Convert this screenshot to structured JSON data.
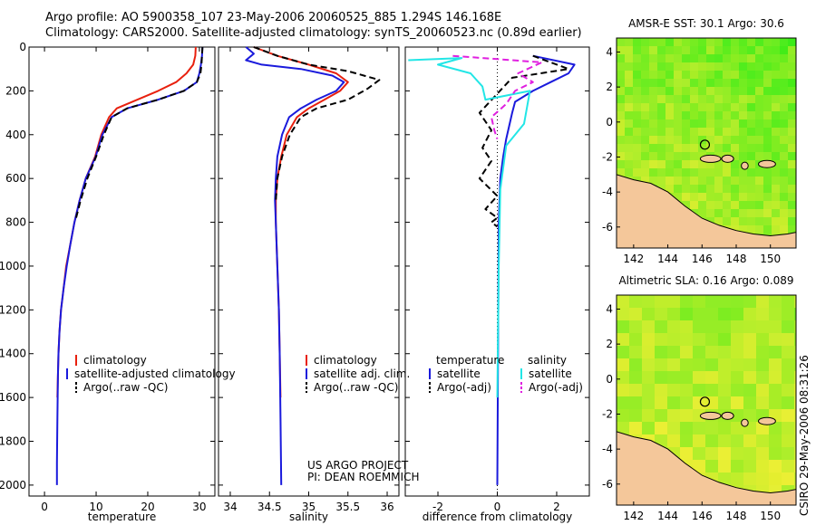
{
  "header": {
    "line1": "Argo profile: AO 5900358_107 23-May-2006 20060525_885 1.294S 146.168E",
    "line2": "Climatology: CARS2000. Satellite-adjusted climatology: synTS_20060523.nc (0.89d earlier)"
  },
  "footer_stamp": "CSIRO 29-May-2006 08:31:26",
  "colors": {
    "red": "#e8200e",
    "blue": "#1a1adc",
    "black": "#000000",
    "cyan": "#22e6e6",
    "magenta": "#e020e0",
    "land": "#f4c79a"
  },
  "chart_data": [
    {
      "type": "line",
      "title": "",
      "xlabel": "temperature",
      "ylabel": "",
      "xlim": [
        -3,
        33
      ],
      "ylim": [
        2050,
        0
      ],
      "xticks": [
        0,
        10,
        20,
        30
      ],
      "yticks": [
        0,
        200,
        400,
        600,
        800,
        1000,
        1200,
        1400,
        1600,
        1800,
        2000
      ],
      "legend": {
        "location": "lower-right",
        "entries": [
          "climatology",
          "satellite-adjusted climatology",
          "Argo(..raw -QC)"
        ]
      },
      "series": [
        {
          "name": "climatology",
          "color": "red",
          "style": "solid",
          "x": [
            29.3,
            29.2,
            28.8,
            27.5,
            25.5,
            22,
            18,
            14,
            12.5,
            11,
            9.8,
            8,
            6.8,
            5.8,
            5,
            4.2,
            3.7,
            3.2,
            2.9,
            2.7,
            2.6,
            2.5
          ],
          "y": [
            0,
            40,
            80,
            120,
            160,
            200,
            240,
            280,
            320,
            400,
            500,
            600,
            700,
            800,
            900,
            1000,
            1100,
            1200,
            1300,
            1400,
            1500,
            1600
          ]
        },
        {
          "name": "satellite-adjusted climatology",
          "color": "blue",
          "style": "solid",
          "x": [
            30.6,
            30.5,
            30.3,
            30,
            29.5,
            27,
            22,
            16,
            13,
            11.2,
            9.9,
            8,
            6.8,
            5.8,
            5,
            4.3,
            3.7,
            3.2,
            2.9,
            2.7,
            2.6,
            2.5,
            2.4,
            2.4
          ],
          "y": [
            0,
            40,
            80,
            120,
            160,
            200,
            240,
            280,
            320,
            400,
            500,
            600,
            700,
            800,
            900,
            1000,
            1100,
            1200,
            1300,
            1400,
            1500,
            1700,
            1900,
            2000
          ]
        },
        {
          "name": "Argo(..raw -QC)",
          "color": "black",
          "style": "dashed",
          "x": [
            30.6,
            30.5,
            30.4,
            30.2,
            29.5,
            27,
            22,
            16,
            13,
            11.5,
            10,
            8.3,
            7,
            6
          ],
          "y": [
            0,
            40,
            80,
            120,
            160,
            200,
            240,
            280,
            320,
            400,
            500,
            600,
            700,
            790
          ]
        }
      ]
    },
    {
      "type": "line",
      "title": "",
      "xlabel": "salinity",
      "ylabel": "",
      "xlim": [
        33.85,
        36.15
      ],
      "ylim": [
        2050,
        0
      ],
      "xticks": [
        34,
        34.5,
        35,
        35.5,
        36
      ],
      "xtick_labels": [
        "34",
        "34.5",
        "35",
        "35.5",
        "36"
      ],
      "legend": {
        "location": "lower-right",
        "entries": [
          "climatology",
          "satellite adj. clim.",
          "Argo(..raw -QC)"
        ]
      },
      "series": [
        {
          "name": "climatology",
          "color": "red",
          "style": "solid",
          "x": [
            34.3,
            34.6,
            35,
            35.35,
            35.5,
            35.4,
            35.2,
            35,
            34.85,
            34.72,
            34.65,
            34.6,
            34.58,
            34.58,
            34.6,
            34.62,
            34.63,
            34.64
          ],
          "y": [
            0,
            40,
            80,
            120,
            160,
            200,
            240,
            280,
            320,
            400,
            500,
            600,
            700,
            800,
            1000,
            1200,
            1400,
            1600
          ]
        },
        {
          "name": "satellite adj. clim.",
          "color": "blue",
          "style": "solid",
          "x": [
            34.2,
            34.3,
            34.2,
            34.4,
            34.9,
            35.3,
            35.45,
            35.35,
            35.1,
            34.9,
            34.75,
            34.66,
            34.6,
            34.58,
            34.57,
            34.58,
            34.6,
            34.62,
            34.63,
            34.64,
            34.65
          ],
          "y": [
            0,
            30,
            60,
            80,
            100,
            130,
            160,
            200,
            240,
            280,
            320,
            400,
            500,
            600,
            700,
            800,
            1000,
            1200,
            1400,
            1700,
            2000
          ]
        },
        {
          "name": "Argo(..raw -QC)",
          "color": "black",
          "style": "dashed",
          "x": [
            34.3,
            34.6,
            35,
            35.5,
            35.9,
            35.75,
            35.5,
            35.1,
            34.9,
            34.76,
            34.66,
            34.6,
            34.58
          ],
          "y": [
            0,
            40,
            80,
            110,
            150,
            190,
            240,
            280,
            320,
            400,
            500,
            600,
            700
          ]
        }
      ]
    },
    {
      "type": "line",
      "title": "",
      "xlabel": "difference from climatology",
      "ylabel": "",
      "xlim": [
        -3.1,
        3.1
      ],
      "ylim": [
        2050,
        0
      ],
      "xticks": [
        -2,
        0,
        2
      ],
      "legend": {
        "location": "lower-right",
        "entries": [
          "temperature",
          "satellite",
          "Argo(-adj)",
          "salinity",
          "satellite",
          "Argo(-adj)"
        ]
      },
      "series": [
        {
          "name": "temperature satellite",
          "color": "blue",
          "style": "solid",
          "x": [
            1.2,
            2.6,
            2.4,
            1.8,
            1.2,
            0.6,
            0.5,
            0.4,
            0.3,
            0.2,
            0.1,
            0.05,
            0
          ],
          "y": [
            40,
            80,
            120,
            160,
            200,
            250,
            300,
            360,
            420,
            500,
            600,
            800,
            2000
          ]
        },
        {
          "name": "temperature Argo(-adj)",
          "color": "black",
          "style": "dashed",
          "x": [
            1.2,
            2.4,
            0.5,
            -0.6,
            -0.2,
            -0.5,
            -0.2,
            -0.6,
            0,
            -0.4,
            0,
            -0.2,
            0
          ],
          "y": [
            40,
            100,
            140,
            300,
            380,
            460,
            520,
            600,
            680,
            740,
            780,
            800,
            820
          ]
        },
        {
          "name": "salinity satellite",
          "color": "cyan",
          "style": "solid",
          "x": [
            -3,
            -1.2,
            -2,
            -0.9,
            -0.5,
            -0.4,
            1.1,
            0.9,
            0.3,
            0.1,
            0.05,
            0
          ],
          "y": [
            60,
            50,
            80,
            120,
            180,
            240,
            200,
            350,
            450,
            650,
            1000,
            1600
          ]
        },
        {
          "name": "salinity Argo(-adj)",
          "color": "magenta",
          "style": "dashed",
          "x": [
            -1.5,
            1.5,
            0.7,
            1.2,
            0.6,
            0.3,
            -0.2,
            -0.1,
            0
          ],
          "y": [
            40,
            70,
            120,
            160,
            200,
            260,
            320,
            380,
            420
          ]
        }
      ]
    },
    {
      "type": "heatmap",
      "title": "AMSR-E SST: 30.1 Argo: 30.6",
      "xticks": [
        142,
        144,
        146,
        148,
        150
      ],
      "yticks": [
        4,
        2,
        0,
        -2,
        -4,
        -6
      ],
      "xlim": [
        141,
        151.5
      ],
      "ylim": [
        -7.2,
        4.8
      ],
      "argo_position": {
        "lon": 146.168,
        "lat": -1.294
      }
    },
    {
      "type": "heatmap",
      "title": "Altimetric SLA: 0.16 Argo: 0.089",
      "xticks": [
        142,
        144,
        146,
        148,
        150
      ],
      "yticks": [
        4,
        2,
        0,
        -2,
        -4,
        -6
      ],
      "xlim": [
        141,
        151.5
      ],
      "ylim": [
        -7.2,
        4.8
      ],
      "argo_position": {
        "lon": 146.168,
        "lat": -1.294
      }
    }
  ],
  "labels": {
    "project_line1": "US ARGO PROJECT",
    "project_line2": "PI: DEAN ROEMMICH"
  }
}
